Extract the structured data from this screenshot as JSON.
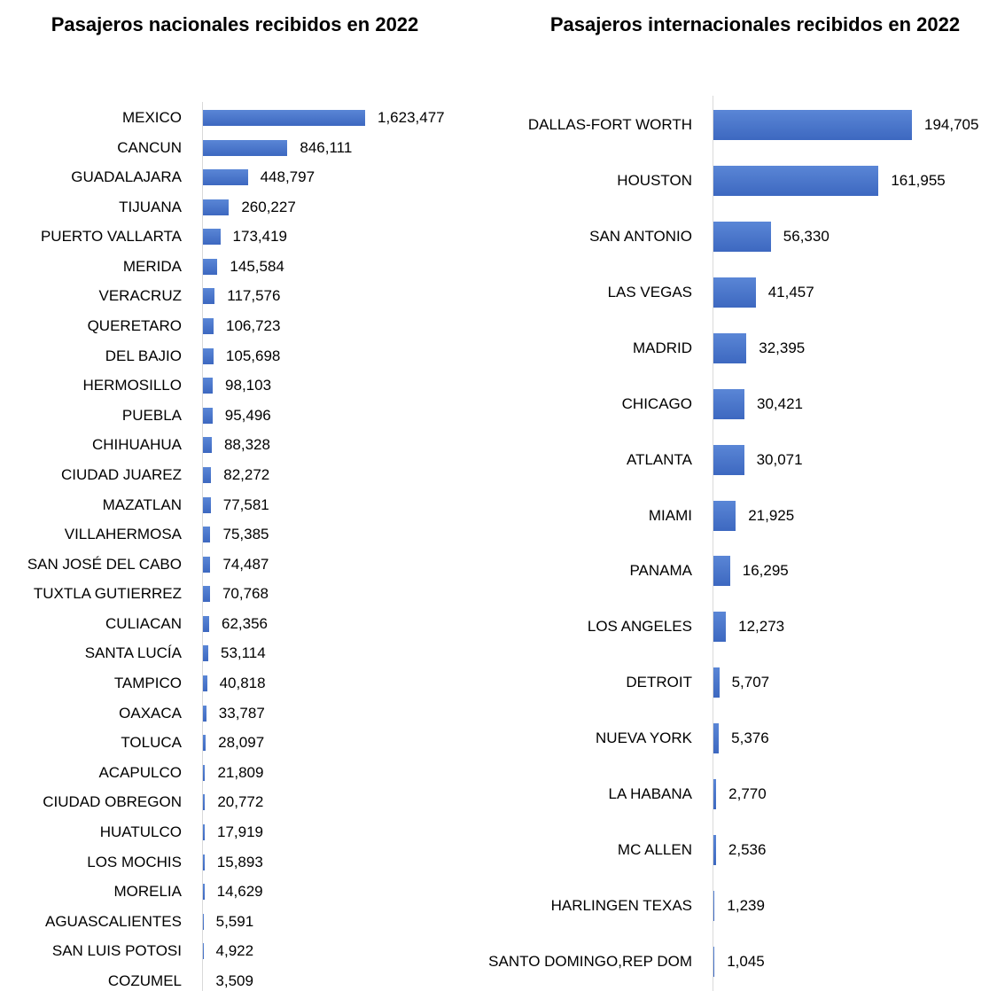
{
  "chart_data": [
    {
      "type": "bar",
      "orientation": "horizontal",
      "title": "Pasajeros nacionales recibidos en 2022",
      "color": "#4472c4",
      "categories": [
        "MEXICO",
        "CANCUN",
        "GUADALAJARA",
        "TIJUANA",
        "PUERTO VALLARTA",
        "MERIDA",
        "VERACRUZ",
        "QUERETARO",
        "DEL BAJIO",
        "HERMOSILLO",
        "PUEBLA",
        "CHIHUAHUA",
        "CIUDAD JUAREZ",
        "MAZATLAN",
        "VILLAHERMOSA",
        "SAN JOSÉ DEL CABO",
        "TUXTLA GUTIERREZ",
        "CULIACAN",
        "SANTA LUCÍA",
        "TAMPICO",
        "OAXACA",
        "TOLUCA",
        "ACAPULCO",
        "CIUDAD OBREGON",
        "HUATULCO",
        "LOS MOCHIS",
        "MORELIA",
        "AGUASCALIENTES",
        "SAN LUIS POTOSI",
        "COZUMEL"
      ],
      "values": [
        1623477,
        846111,
        448797,
        260227,
        173419,
        145584,
        117576,
        106723,
        105698,
        98103,
        95496,
        88328,
        82272,
        77581,
        75385,
        74487,
        70768,
        62356,
        53114,
        40818,
        33787,
        28097,
        21809,
        20772,
        17919,
        15893,
        14629,
        5591,
        4922,
        3509
      ],
      "value_labels": [
        "1,623,477",
        "846,111",
        "448,797",
        "260,227",
        "173,419",
        "145,584",
        "117,576",
        "106,723",
        "105,698",
        "98,103",
        "95,496",
        "88,328",
        "82,272",
        "77,581",
        "75,385",
        "74,487",
        "70,768",
        "62,356",
        "53,114",
        "40,818",
        "33,787",
        "28,097",
        "21,809",
        "20,772",
        "17,919",
        "15,893",
        "14,629",
        "5,591",
        "4,922",
        "3,509"
      ]
    },
    {
      "type": "bar",
      "orientation": "horizontal",
      "title": "Pasajeros internacionales recibidos en 2022",
      "color": "#4472c4",
      "categories": [
        "DALLAS-FORT WORTH",
        "HOUSTON",
        "SAN ANTONIO",
        "LAS VEGAS",
        "MADRID",
        "CHICAGO",
        "ATLANTA",
        "MIAMI",
        "PANAMA",
        "LOS ANGELES",
        "DETROIT",
        "NUEVA YORK",
        "LA HABANA",
        "MC ALLEN",
        "HARLINGEN TEXAS",
        "SANTO DOMINGO,REP DOM"
      ],
      "values": [
        194705,
        161955,
        56330,
        41457,
        32395,
        30421,
        30071,
        21925,
        16295,
        12273,
        5707,
        5376,
        2770,
        2536,
        1239,
        1045
      ],
      "value_labels": [
        "194,705",
        "161,955",
        "56,330",
        "41,457",
        "32,395",
        "30,421",
        "30,071",
        "21,925",
        "16,295",
        "12,273",
        "5,707",
        "5,376",
        "2,770",
        "2,536",
        "1,239",
        "1,045"
      ]
    }
  ]
}
